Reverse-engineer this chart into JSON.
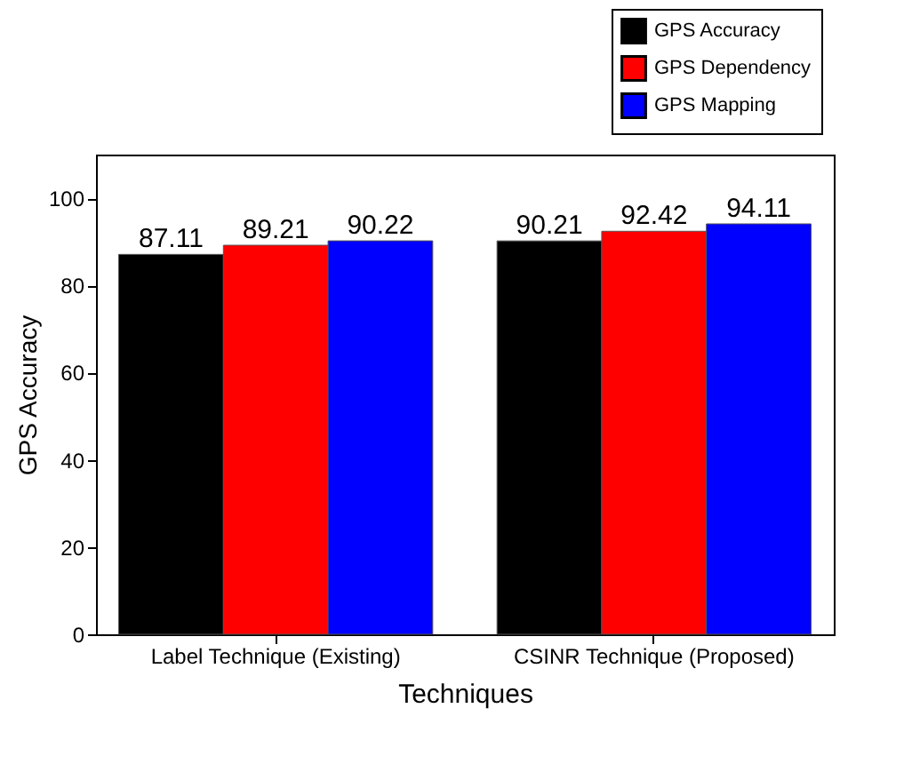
{
  "chart_data": {
    "type": "bar",
    "categories": [
      "Label Technique (Existing)",
      "CSINR Technique (Proposed)"
    ],
    "series": [
      {
        "name": "GPS Accuracy",
        "color": "#000000",
        "values": [
          87.11,
          90.21
        ]
      },
      {
        "name": "GPS Dependency",
        "color": "#ff0000",
        "values": [
          89.21,
          92.42
        ]
      },
      {
        "name": "GPS Mapping",
        "color": "#0000ff",
        "values": [
          90.22,
          94.11
        ]
      }
    ],
    "xlabel": "Techniques",
    "ylabel": "GPS Accuracy",
    "ylim": [
      0,
      110
    ],
    "yticks": [
      0,
      20,
      40,
      60,
      80,
      100
    ],
    "data_labels": true,
    "legend": "top right",
    "grid": false
  }
}
